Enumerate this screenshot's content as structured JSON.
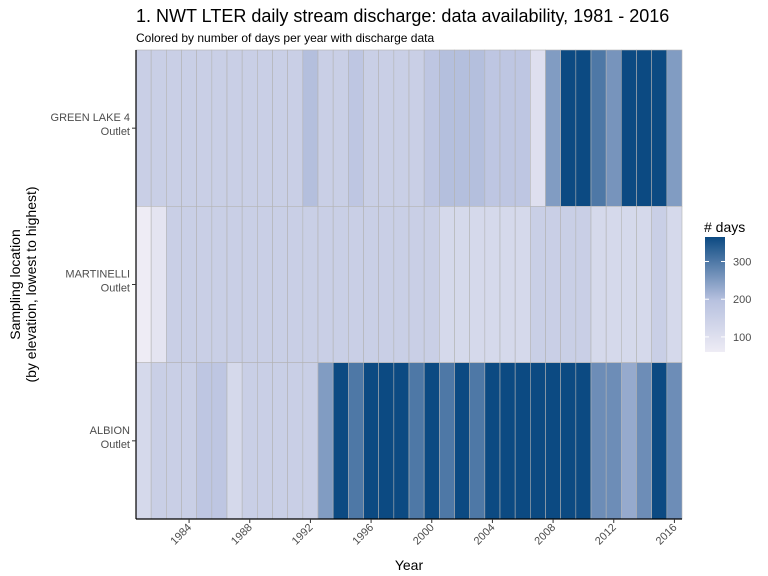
{
  "chart_data": {
    "type": "heatmap",
    "title": "1. NWT LTER daily stream discharge: data availability, 1981 - 2016",
    "subtitle": "Colored by number of days per year with discharge data",
    "xlabel": "Year",
    "ylabel": "Sampling location\n(by elevation, lowest to highest)",
    "x": [
      1981,
      1982,
      1983,
      1984,
      1985,
      1986,
      1987,
      1988,
      1989,
      1990,
      1991,
      1992,
      1993,
      1994,
      1995,
      1996,
      1997,
      1998,
      1999,
      2000,
      2001,
      2002,
      2003,
      2004,
      2005,
      2006,
      2007,
      2008,
      2009,
      2010,
      2011,
      2012,
      2013,
      2014,
      2015,
      2016
    ],
    "x_ticks": [
      1984,
      1988,
      1992,
      1996,
      2000,
      2004,
      2008,
      2012,
      2016
    ],
    "y_categories": [
      {
        "name": "GREEN LAKE 4",
        "sub": "Outlet"
      },
      {
        "name": "MARTINELLI",
        "sub": "Outlet"
      },
      {
        "name": "ALBION",
        "sub": "Outlet"
      }
    ],
    "values": [
      [
        153,
        153,
        153,
        153,
        153,
        153,
        153,
        153,
        153,
        153,
        153,
        200,
        153,
        153,
        180,
        153,
        153,
        153,
        153,
        180,
        200,
        200,
        200,
        180,
        180,
        180,
        100,
        250,
        365,
        365,
        300,
        260,
        365,
        365,
        365,
        250
      ],
      [
        60,
        85,
        153,
        153,
        153,
        153,
        153,
        153,
        153,
        153,
        153,
        153,
        153,
        153,
        153,
        153,
        153,
        153,
        153,
        153,
        122,
        122,
        122,
        122,
        122,
        122,
        153,
        153,
        153,
        153,
        122,
        122,
        122,
        122,
        153,
        122
      ],
      [
        122,
        153,
        153,
        153,
        180,
        180,
        122,
        153,
        153,
        153,
        153,
        153,
        250,
        365,
        300,
        365,
        365,
        365,
        300,
        365,
        300,
        365,
        300,
        365,
        365,
        365,
        365,
        365,
        365,
        365,
        270,
        270,
        230,
        270,
        365,
        270
      ]
    ],
    "legend": {
      "title": "# days",
      "ticks": [
        100,
        200,
        300
      ],
      "range": [
        60,
        365
      ],
      "position": "right"
    },
    "colors": {
      "low": "#eeecf5",
      "mid": "#b7c1df",
      "high": "#0c4a82",
      "grid": "#b3b3b3"
    }
  }
}
